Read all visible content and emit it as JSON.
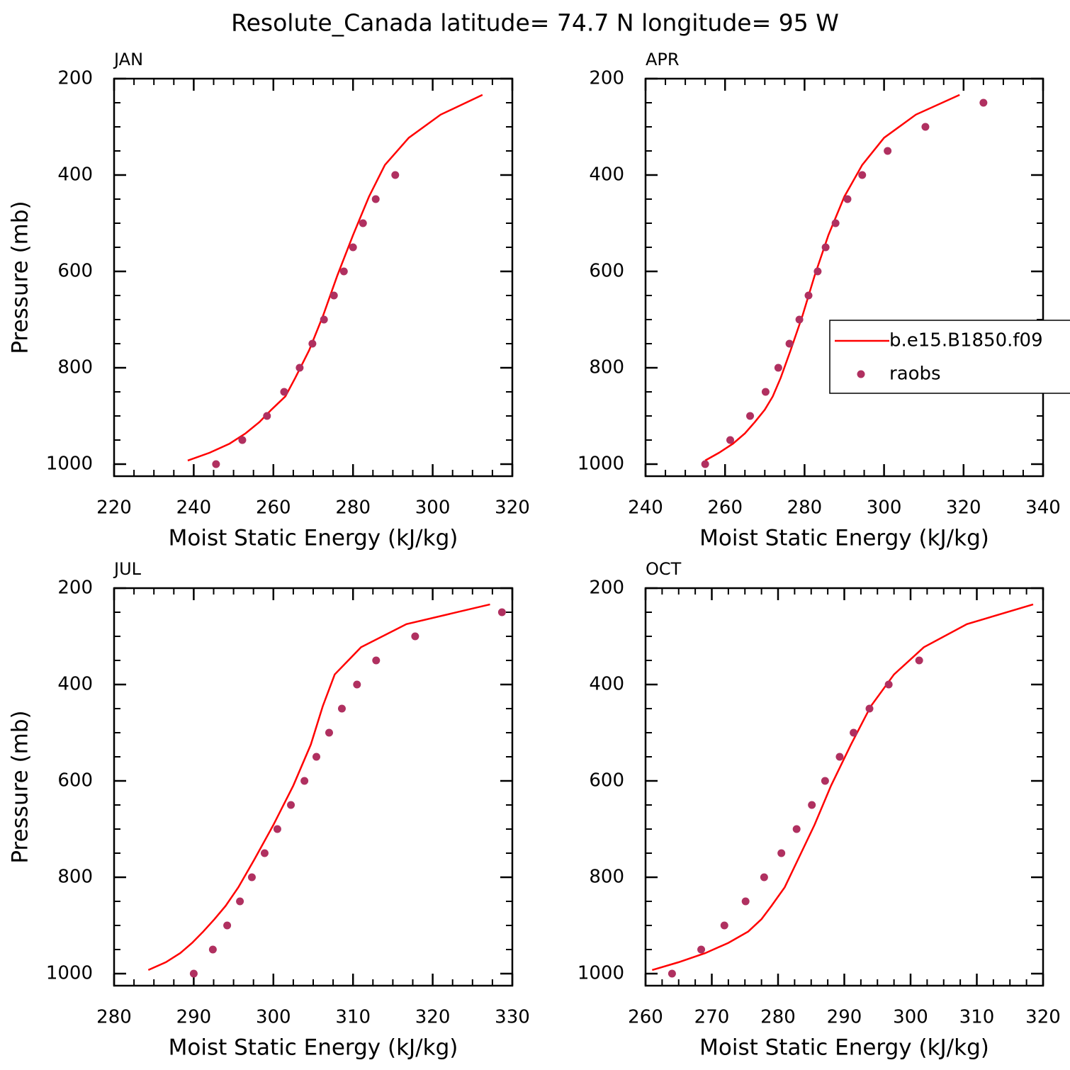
{
  "title": "Resolute_Canada  latitude= 74.7 N longitude= 95 W",
  "chart_data": [
    {
      "type": "line",
      "title": "JAN",
      "xlabel": "Moist Static Energy (kJ/kg)",
      "ylabel": "Pressure (mb)",
      "xlim": [
        220,
        320
      ],
      "xticks": [
        220,
        240,
        260,
        280,
        300,
        320
      ],
      "ylim": [
        1025,
        200
      ],
      "yticks": [
        200,
        400,
        600,
        800,
        1000
      ],
      "series": [
        {
          "type": "line",
          "color": "#ff0000",
          "x": [
            238.5,
            244,
            249,
            253,
            256.5,
            259.5,
            263,
            265.5,
            269,
            272.5,
            276,
            280,
            284,
            288,
            294,
            302,
            312.5
          ],
          "y": [
            992.5,
            976.3,
            957.5,
            936.2,
            912.6,
            887,
            859.5,
            820.9,
            763.4,
            691.4,
            609.8,
            524.7,
            445,
            379.1,
            322.7,
            274.7,
            233.7
          ]
        },
        {
          "type": "scatter",
          "color": "#b03060",
          "x": [
            245.6,
            252.2,
            258.4,
            262.7,
            266.6,
            269.8,
            272.7,
            275.2,
            277.7,
            280,
            282.5,
            285.7,
            290.6
          ],
          "y": [
            1000,
            950,
            900,
            850,
            800,
            750,
            700,
            650,
            600,
            550,
            500,
            450,
            400
          ]
        }
      ]
    },
    {
      "type": "line",
      "title": "APR",
      "xlabel": "Moist Static Energy (kJ/kg)",
      "xlim": [
        240,
        340
      ],
      "xticks": [
        240,
        260,
        280,
        300,
        320,
        340
      ],
      "ylim": [
        1025,
        200
      ],
      "yticks": [
        200,
        400,
        600,
        800,
        1000
      ],
      "legend": "center right",
      "series": [
        {
          "type": "line",
          "name": "b.e15.B1850.f09",
          "color": "#ff0000",
          "x": [
            255,
            258.5,
            262,
            265,
            267.5,
            270,
            272,
            274,
            276.5,
            279.5,
            282.5,
            286,
            290,
            294.5,
            300,
            308,
            319
          ],
          "y": [
            992.5,
            976.3,
            957.5,
            936.2,
            912.6,
            887,
            859.5,
            820.9,
            763.4,
            691.4,
            609.8,
            524.7,
            445,
            379.1,
            322.7,
            274.7,
            233.7
          ]
        },
        {
          "type": "scatter",
          "name": "raobs",
          "color": "#b03060",
          "x": [
            255,
            261.3,
            266.3,
            270.2,
            273.4,
            276.2,
            278.7,
            281,
            283.3,
            285.3,
            287.8,
            290.8,
            294.5,
            300.9,
            310.4,
            325
          ],
          "y": [
            1000,
            950,
            900,
            850,
            800,
            750,
            700,
            650,
            600,
            550,
            500,
            450,
            400,
            350,
            300,
            250
          ]
        }
      ]
    },
    {
      "type": "line",
      "title": "JUL",
      "xlabel": "Moist Static Energy (kJ/kg)",
      "ylabel": "Pressure (mb)",
      "xlim": [
        280,
        330
      ],
      "xticks": [
        280,
        290,
        300,
        310,
        320,
        330
      ],
      "ylim": [
        1025,
        200
      ],
      "yticks": [
        200,
        400,
        600,
        800,
        1000
      ],
      "series": [
        {
          "type": "line",
          "color": "#ff0000",
          "x": [
            284.3,
            286.5,
            288.3,
            289.8,
            291.2,
            292.6,
            294,
            295.6,
            297.6,
            300,
            302.5,
            304.7,
            306.2,
            307.7,
            311,
            316.7,
            327.2
          ],
          "y": [
            992.5,
            976.3,
            957.5,
            936.2,
            912.6,
            887,
            859.5,
            820.9,
            763.4,
            691.4,
            609.8,
            524.7,
            445,
            379.1,
            322.7,
            274.7,
            233.7
          ]
        },
        {
          "type": "scatter",
          "color": "#b03060",
          "x": [
            290,
            292.4,
            294.2,
            295.8,
            297.3,
            298.9,
            300.5,
            302.2,
            303.9,
            305.4,
            307,
            308.6,
            310.5,
            312.9,
            317.8,
            328.7
          ],
          "y": [
            1000,
            950,
            900,
            850,
            800,
            750,
            700,
            650,
            600,
            550,
            500,
            450,
            400,
            350,
            300,
            250
          ]
        }
      ]
    },
    {
      "type": "line",
      "title": "OCT",
      "xlabel": "Moist Static Energy (kJ/kg)",
      "xlim": [
        260,
        320
      ],
      "xticks": [
        260,
        270,
        280,
        290,
        300,
        310,
        320
      ],
      "ylim": [
        1025,
        200
      ],
      "yticks": [
        200,
        400,
        600,
        800,
        1000
      ],
      "series": [
        {
          "type": "line",
          "color": "#ff0000",
          "x": [
            261,
            265,
            269,
            272.5,
            275.5,
            277.5,
            279,
            281,
            283,
            285.5,
            288,
            291,
            294,
            297.5,
            302,
            308.5,
            318.5
          ],
          "y": [
            992.5,
            976.3,
            957.5,
            936.2,
            912.6,
            887,
            859.5,
            820.9,
            763.4,
            691.4,
            609.8,
            524.7,
            445,
            379.1,
            322.7,
            274.7,
            233.7
          ]
        },
        {
          "type": "scatter",
          "color": "#b03060",
          "x": [
            264,
            268.4,
            271.9,
            275.1,
            277.9,
            280.5,
            282.8,
            285.1,
            287.1,
            289.3,
            291.4,
            293.8,
            296.7,
            301.3
          ],
          "y": [
            1000,
            950,
            900,
            850,
            800,
            750,
            700,
            650,
            600,
            550,
            500,
            450,
            400,
            350
          ]
        }
      ]
    }
  ]
}
